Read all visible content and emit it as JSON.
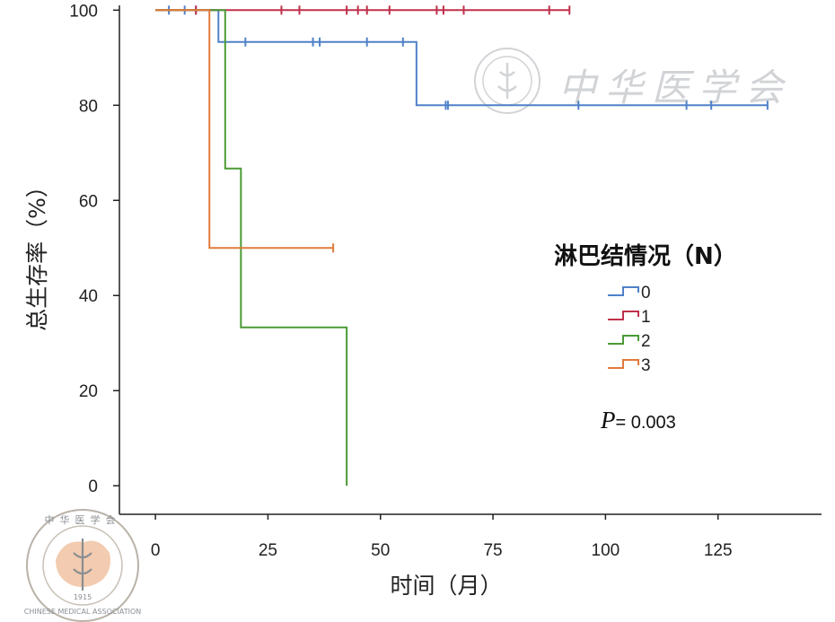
{
  "chart_data": {
    "type": "line",
    "subtype": "kaplan-meier step curve with censor marks",
    "xlabel": "时间（月）",
    "ylabel": "总生存率（%）",
    "xlim": [
      -8,
      148
    ],
    "ylim": [
      -6,
      101
    ],
    "x_ticks": [
      0,
      25,
      50,
      75,
      100,
      125
    ],
    "x_tick_labels": [
      "0",
      "25",
      "50",
      "75",
      "100",
      "125"
    ],
    "y_ticks": [
      0,
      20,
      40,
      60,
      80,
      100
    ],
    "y_tick_labels": [
      "0",
      "20",
      "40",
      "60",
      "80",
      "100"
    ],
    "grid": false,
    "legend": {
      "title": "淋巴结情况（N）",
      "placement": "right"
    },
    "series": [
      {
        "name": "0",
        "color": "#4f81c9",
        "steps": [
          [
            0,
            100
          ],
          [
            14,
            93.3
          ],
          [
            58,
            80
          ],
          [
            136,
            80
          ]
        ],
        "censored": [
          [
            3,
            100
          ],
          [
            6.5,
            100
          ],
          [
            9,
            100
          ],
          [
            20,
            93.3
          ],
          [
            35,
            93.3
          ],
          [
            36.5,
            93.3
          ],
          [
            47,
            93.3
          ],
          [
            55,
            93.3
          ],
          [
            64.5,
            80
          ],
          [
            65,
            80
          ],
          [
            94,
            80
          ],
          [
            118,
            80
          ],
          [
            123.5,
            80
          ],
          [
            136,
            80
          ]
        ]
      },
      {
        "name": "1",
        "color": "#c0304a",
        "steps": [
          [
            0,
            100
          ],
          [
            92,
            100
          ]
        ],
        "censored": [
          [
            9,
            100
          ],
          [
            28,
            100
          ],
          [
            32,
            100
          ],
          [
            42.5,
            100
          ],
          [
            45,
            100
          ],
          [
            47,
            100
          ],
          [
            52,
            100
          ],
          [
            62.5,
            100
          ],
          [
            64,
            100
          ],
          [
            68.5,
            100
          ],
          [
            87.5,
            100
          ],
          [
            92,
            100
          ]
        ]
      },
      {
        "name": "2",
        "color": "#4a9a35",
        "steps": [
          [
            0,
            100
          ],
          [
            15.5,
            66.7
          ],
          [
            19,
            33.3
          ],
          [
            42.5,
            0
          ]
        ],
        "censored": []
      },
      {
        "name": "3",
        "color": "#e07a3c",
        "steps": [
          [
            0,
            100
          ],
          [
            12,
            50
          ],
          [
            39.5,
            50
          ]
        ],
        "censored": [
          [
            39.5,
            50
          ]
        ]
      }
    ],
    "annotations": [
      {
        "text_prefix": "P",
        "text": "= 0.003"
      }
    ]
  },
  "watermark": {
    "top_text": "中华医学会",
    "seal_text": "CHINESE MEDICAL ASSOCIATION",
    "year": "1915"
  }
}
